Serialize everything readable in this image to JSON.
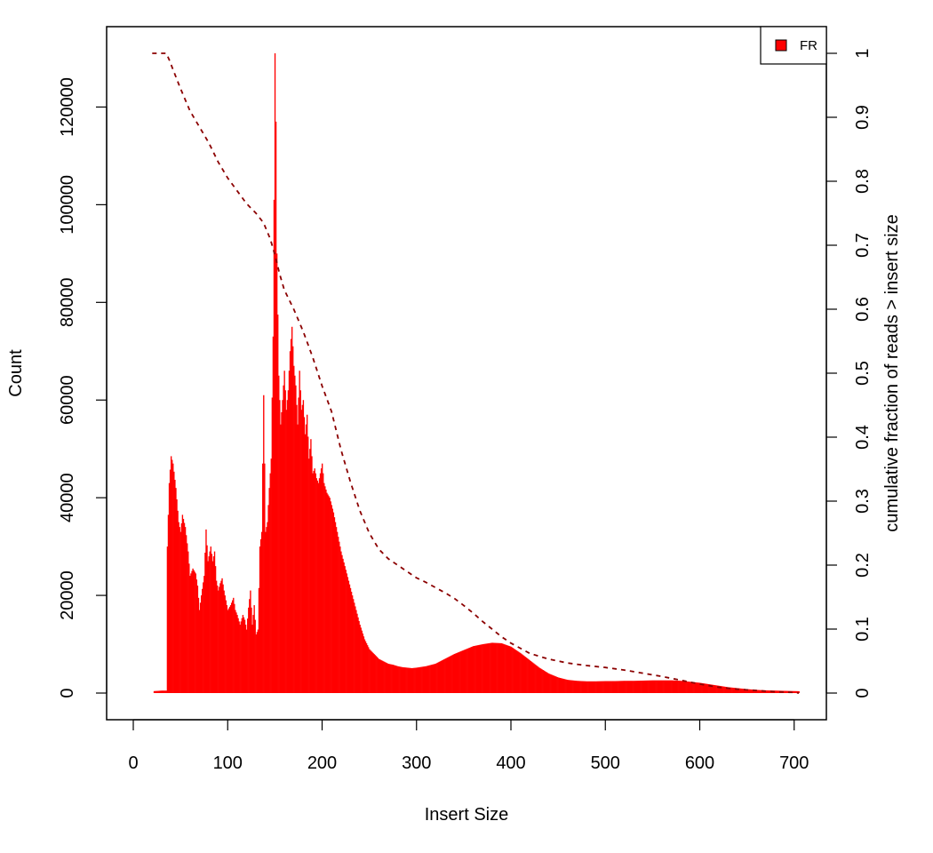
{
  "chart_data": {
    "type": "bar",
    "xlabel": "Insert Size",
    "ylabel": "Count",
    "y2label": "cumulative fraction of reads > insert size",
    "xlim": [
      0,
      720
    ],
    "ylim": [
      0,
      132000
    ],
    "y2lim": [
      0,
      1
    ],
    "x_ticks": [
      "0",
      "100",
      "200",
      "300",
      "400",
      "500",
      "600",
      "700"
    ],
    "y_ticks": [
      "0",
      "20000",
      "40000",
      "60000",
      "80000",
      "100000",
      "120000"
    ],
    "y2_ticks": [
      "0",
      "0.1",
      "0.2",
      "0.3",
      "0.4",
      "0.5",
      "0.6",
      "0.7",
      "0.8",
      "0.9",
      "1"
    ],
    "legend": {
      "position": "top-right",
      "entries": [
        "FR"
      ]
    },
    "colors": {
      "bars": "#ff0000",
      "cumulative_line": "#8b0000"
    },
    "histogram": {
      "name": "FR",
      "points": [
        [
          22,
          400
        ],
        [
          30,
          500
        ],
        [
          35,
          500
        ],
        [
          36,
          30000
        ],
        [
          38,
          43000
        ],
        [
          40,
          48500
        ],
        [
          42,
          47000
        ],
        [
          45,
          42000
        ],
        [
          48,
          35000
        ],
        [
          50,
          33000
        ],
        [
          52,
          36500
        ],
        [
          55,
          34000
        ],
        [
          58,
          29000
        ],
        [
          60,
          24000
        ],
        [
          63,
          25500
        ],
        [
          66,
          24500
        ],
        [
          68,
          22000
        ],
        [
          70,
          17000
        ],
        [
          72,
          20000
        ],
        [
          75,
          24000
        ],
        [
          77,
          33500
        ],
        [
          79,
          27000
        ],
        [
          82,
          30000
        ],
        [
          84,
          27000
        ],
        [
          86,
          29000
        ],
        [
          88,
          23000
        ],
        [
          90,
          21000
        ],
        [
          92,
          22500
        ],
        [
          94,
          23500
        ],
        [
          96,
          21000
        ],
        [
          98,
          19000
        ],
        [
          100,
          17000
        ],
        [
          103,
          18000
        ],
        [
          106,
          19500
        ],
        [
          108,
          17000
        ],
        [
          110,
          16000
        ],
        [
          113,
          14000
        ],
        [
          116,
          16000
        ],
        [
          118,
          15000
        ],
        [
          120,
          13000
        ],
        [
          122,
          17500
        ],
        [
          124,
          21000
        ],
        [
          126,
          14000
        ],
        [
          128,
          18000
        ],
        [
          130,
          12000
        ],
        [
          132,
          13000
        ],
        [
          134,
          30000
        ],
        [
          136,
          33000
        ],
        [
          138,
          61000
        ],
        [
          140,
          33000
        ],
        [
          142,
          35000
        ],
        [
          144,
          42000
        ],
        [
          146,
          48000
        ],
        [
          148,
          73000
        ],
        [
          149,
          101000
        ],
        [
          150,
          131000
        ],
        [
          151,
          117000
        ],
        [
          152,
          90000
        ],
        [
          154,
          65000
        ],
        [
          156,
          55000
        ],
        [
          158,
          60000
        ],
        [
          160,
          66000
        ],
        [
          162,
          58000
        ],
        [
          164,
          62000
        ],
        [
          166,
          70000
        ],
        [
          168,
          75000
        ],
        [
          170,
          67000
        ],
        [
          172,
          63000
        ],
        [
          174,
          55000
        ],
        [
          176,
          66000
        ],
        [
          178,
          58000
        ],
        [
          180,
          60000
        ],
        [
          182,
          53000
        ],
        [
          184,
          57000
        ],
        [
          186,
          48000
        ],
        [
          188,
          52000
        ],
        [
          190,
          45000
        ],
        [
          192,
          46000
        ],
        [
          194,
          44000
        ],
        [
          196,
          43000
        ],
        [
          198,
          45000
        ],
        [
          200,
          47000
        ],
        [
          202,
          43000
        ],
        [
          205,
          41000
        ],
        [
          208,
          40000
        ],
        [
          212,
          37000
        ],
        [
          216,
          33000
        ],
        [
          220,
          29000
        ],
        [
          224,
          26000
        ],
        [
          228,
          23000
        ],
        [
          232,
          20000
        ],
        [
          236,
          17000
        ],
        [
          240,
          14000
        ],
        [
          245,
          11000
        ],
        [
          250,
          9000
        ],
        [
          255,
          8000
        ],
        [
          260,
          7000
        ],
        [
          265,
          6500
        ],
        [
          270,
          6000
        ],
        [
          275,
          5800
        ],
        [
          280,
          5500
        ],
        [
          285,
          5300
        ],
        [
          290,
          5200
        ],
        [
          295,
          5100
        ],
        [
          300,
          5200
        ],
        [
          310,
          5500
        ],
        [
          320,
          6000
        ],
        [
          330,
          7000
        ],
        [
          340,
          8000
        ],
        [
          350,
          8800
        ],
        [
          360,
          9600
        ],
        [
          370,
          10000
        ],
        [
          380,
          10300
        ],
        [
          390,
          10200
        ],
        [
          400,
          9500
        ],
        [
          410,
          8200
        ],
        [
          420,
          6700
        ],
        [
          430,
          5200
        ],
        [
          440,
          4000
        ],
        [
          450,
          3200
        ],
        [
          460,
          2700
        ],
        [
          470,
          2500
        ],
        [
          480,
          2400
        ],
        [
          490,
          2400
        ],
        [
          500,
          2450
        ],
        [
          510,
          2450
        ],
        [
          520,
          2500
        ],
        [
          530,
          2500
        ],
        [
          540,
          2550
        ],
        [
          550,
          2600
        ],
        [
          560,
          2600
        ],
        [
          570,
          2600
        ],
        [
          580,
          2500
        ],
        [
          590,
          2300
        ],
        [
          600,
          2100
        ],
        [
          610,
          1800
        ],
        [
          620,
          1500
        ],
        [
          630,
          1200
        ],
        [
          640,
          1000
        ],
        [
          650,
          800
        ],
        [
          660,
          650
        ],
        [
          670,
          550
        ],
        [
          680,
          500
        ],
        [
          690,
          450
        ],
        [
          700,
          400
        ],
        [
          705,
          380
        ]
      ]
    },
    "cumulative": {
      "style": "dashed",
      "points": [
        [
          20,
          1.0
        ],
        [
          35,
          1.0
        ],
        [
          38,
          0.99
        ],
        [
          42,
          0.975
        ],
        [
          50,
          0.945
        ],
        [
          60,
          0.91
        ],
        [
          70,
          0.885
        ],
        [
          80,
          0.86
        ],
        [
          90,
          0.83
        ],
        [
          100,
          0.805
        ],
        [
          110,
          0.785
        ],
        [
          120,
          0.765
        ],
        [
          130,
          0.75
        ],
        [
          138,
          0.735
        ],
        [
          145,
          0.71
        ],
        [
          150,
          0.685
        ],
        [
          155,
          0.655
        ],
        [
          160,
          0.63
        ],
        [
          170,
          0.6
        ],
        [
          180,
          0.565
        ],
        [
          190,
          0.525
        ],
        [
          200,
          0.48
        ],
        [
          210,
          0.44
        ],
        [
          220,
          0.38
        ],
        [
          230,
          0.33
        ],
        [
          240,
          0.285
        ],
        [
          250,
          0.25
        ],
        [
          260,
          0.225
        ],
        [
          270,
          0.21
        ],
        [
          280,
          0.2
        ],
        [
          290,
          0.19
        ],
        [
          300,
          0.18
        ],
        [
          310,
          0.173
        ],
        [
          320,
          0.165
        ],
        [
          330,
          0.157
        ],
        [
          340,
          0.148
        ],
        [
          350,
          0.137
        ],
        [
          360,
          0.125
        ],
        [
          370,
          0.112
        ],
        [
          380,
          0.1
        ],
        [
          390,
          0.088
        ],
        [
          400,
          0.078
        ],
        [
          420,
          0.062
        ],
        [
          440,
          0.053
        ],
        [
          460,
          0.047
        ],
        [
          480,
          0.043
        ],
        [
          500,
          0.04
        ],
        [
          520,
          0.036
        ],
        [
          540,
          0.031
        ],
        [
          560,
          0.026
        ],
        [
          580,
          0.02
        ],
        [
          600,
          0.014
        ],
        [
          620,
          0.009
        ],
        [
          640,
          0.006
        ],
        [
          660,
          0.004
        ],
        [
          680,
          0.002
        ],
        [
          700,
          0.001
        ],
        [
          705,
          0.0
        ]
      ]
    }
  }
}
